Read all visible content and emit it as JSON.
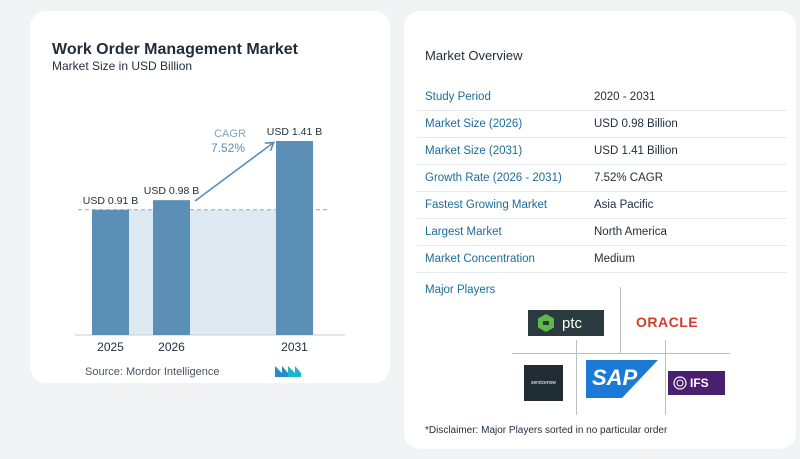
{
  "chart_data": {
    "type": "bar",
    "title": "Work Order Management Market",
    "subtitle": "Market Size in USD Billion",
    "categories": [
      "2025",
      "2026",
      "2031"
    ],
    "values": [
      0.91,
      0.98,
      1.41
    ],
    "data_labels": [
      "USD 0.91 B",
      "USD 0.98 B",
      "USD 1.41 B"
    ],
    "annotation": {
      "label": "CAGR",
      "value": "7.52%"
    },
    "colors": {
      "bar": "#5b8fb5",
      "shade": "#dfe9f2",
      "reference_line": "#9aa3aa"
    }
  },
  "source": "Source:  Mordor Intelligence",
  "overview": {
    "title": "Market Overview",
    "rows": [
      {
        "label": "Study Period",
        "value": "2020 - 2031"
      },
      {
        "label": "Market Size (2026)",
        "value": "USD 0.98 Billion"
      },
      {
        "label": "Market Size (2031)",
        "value": "USD 1.41 Billion"
      },
      {
        "label": "Growth Rate (2026 - 2031)",
        "value": "7.52% CAGR"
      },
      {
        "label": "Fastest Growing Market",
        "value": "Asia Pacific"
      },
      {
        "label": "Largest Market",
        "value": "North America"
      },
      {
        "label": "Market Concentration",
        "value": "Medium"
      }
    ]
  },
  "players": {
    "title": "Major Players",
    "logos": [
      "ptc",
      "ORACLE",
      "servicenow",
      "SAP",
      "IFS"
    ]
  },
  "disclaimer": "*Disclaimer: Major Players sorted in no particular order",
  "accent": "#1c6c9c"
}
